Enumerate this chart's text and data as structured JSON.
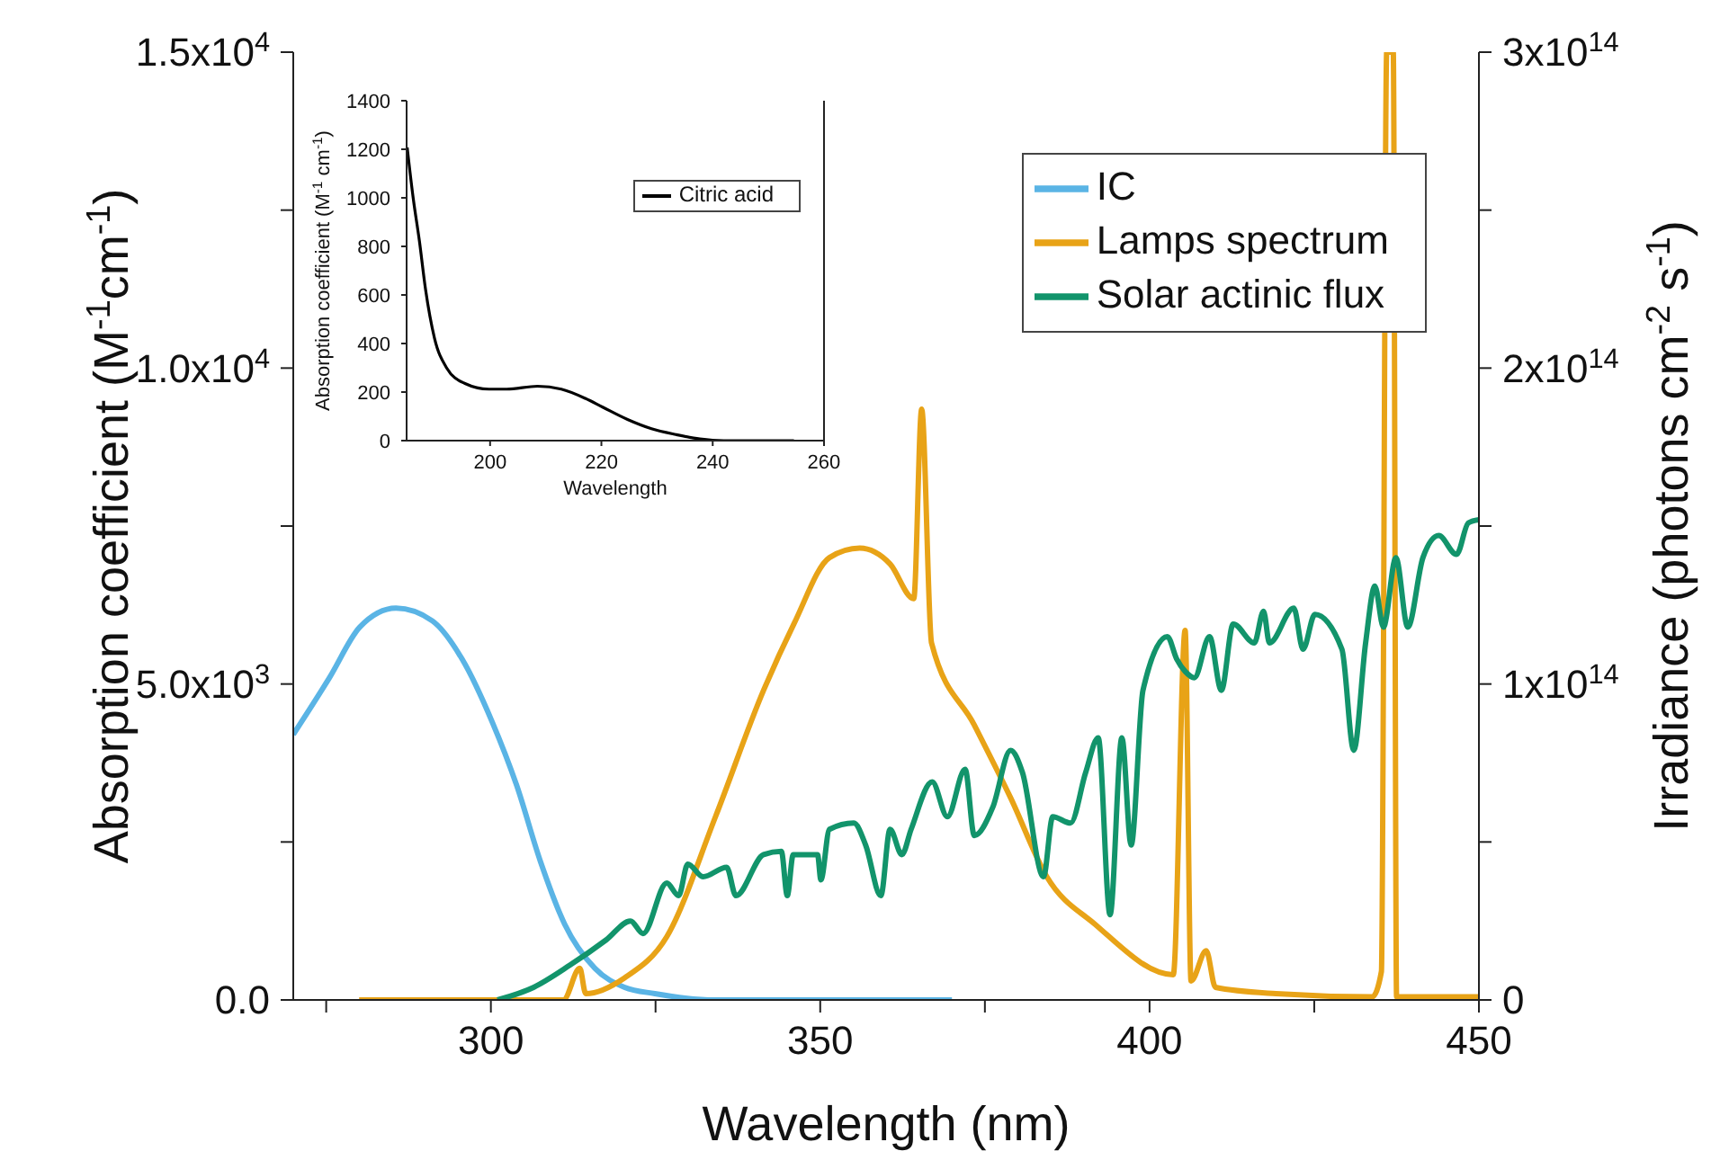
{
  "chart_data": [
    {
      "type": "line",
      "xlabel": "Wavelength (nm)",
      "ylabel": "Absorption coefficient (M$^{-1}$cm$^{-1}$)",
      "y2label": "Irradiance (photons cm$^{-2}$ s$^{-1}$)",
      "xlim": [
        270,
        450
      ],
      "xticks": [
        {
          "value": 275,
          "label": null
        },
        300,
        {
          "value": 325,
          "label": null
        },
        350,
        {
          "value": 375,
          "label": null
        },
        400,
        {
          "value": 425,
          "label": null
        },
        450
      ],
      "ylim": [
        0,
        15000
      ],
      "yticks": [
        {
          "value": 0,
          "label": "0.0"
        },
        {
          "value": 2500,
          "label": null
        },
        {
          "value": 5000,
          "label": "5.0x10$^{3}$"
        },
        {
          "value": 7500,
          "label": null
        },
        {
          "value": 10000,
          "label": "1.0x10$^{4}$"
        },
        {
          "value": 12500,
          "label": null
        },
        {
          "value": 15000,
          "label": "1.5x10$^{4}$"
        }
      ],
      "y2lim": [
        0,
        300000000000000.0
      ],
      "y2ticks": [
        0,
        {
          "value": 50000000000000.0,
          "label": null
        },
        {
          "value": 100000000000000.0,
          "label": "1x10$^{14}$"
        },
        {
          "value": 150000000000000.0,
          "label": null
        },
        {
          "value": 200000000000000.0,
          "label": "2x10$^{14}$"
        },
        {
          "value": 250000000000000.0,
          "label": null
        },
        {
          "value": 300000000000000.0,
          "label": "3x10$^{14}$"
        }
      ],
      "legend": "top right",
      "grid": false,
      "series": [
        {
          "name": "IC",
          "color": "#5ab4e5",
          "x": [
            270,
            275.5,
            280.1,
            285.6,
            291.1,
            295.6,
            300.2,
            303.9,
            307.5,
            311.2,
            315.8,
            320.3,
            324.9,
            334,
            345,
            360,
            370
          ],
          "values": [
            4200,
            5100,
            5900,
            6200,
            6000,
            5400,
            4400,
            3400,
            2200,
            1200,
            500,
            200,
            100,
            0,
            0,
            0,
            0
          ]
        },
        {
          "name": "Lamps spectrum",
          "color": "#e8a317",
          "axis": "y2",
          "x": [
            280,
            311,
            313.5,
            314.4,
            320.3,
            326.7,
            334.1,
            341.4,
            346,
            351.4,
            356,
            360.6,
            364.2,
            365.4,
            366.9,
            373.4,
            378.9,
            384.4,
            391.7,
            403.6,
            405.4,
            406.3,
            408.6,
            410,
            419.2,
            433.8,
            435.2,
            436,
            437,
            437.5,
            450
          ],
          "values": [
            0,
            0,
            10000000000000.0,
            2000000000000.0,
            7000000000000.0,
            20000000000000.0,
            58000000000000.0,
            98000000000000.0,
            119000000000000.0,
            140000000000000.0,
            143000000000000.0,
            138000000000000.0,
            127000000000000.0,
            187000000000000.0,
            113000000000000.0,
            87000000000000.0,
            64000000000000.0,
            39000000000000.0,
            24000000000000.0,
            8000000000000.0,
            117000000000000.0,
            6000000000000.0,
            15600000000000.0,
            4000000000000.0,
            2000000000000.0,
            1000000000000.0,
            9000000000000.0,
            300000000000000.0,
            300000000000000.0,
            1000000000000.0,
            1000000000000.0
          ]
        },
        {
          "name": "Solar actinic flux",
          "color": "#12946b",
          "axis": "y2",
          "x": [
            301,
            306.5,
            312,
            317.5,
            321.2,
            323.1,
            326.7,
            328.5,
            329.9,
            332.2,
            335.8,
            337.2,
            341.4,
            344.1,
            345,
            345.9,
            349.6,
            350.1,
            351.4,
            355.1,
            356.9,
            359.2,
            360.6,
            362.4,
            363.8,
            367,
            369.3,
            372,
            373.4,
            376.2,
            378.9,
            380.7,
            383.9,
            385.3,
            388,
            390.3,
            392.2,
            394,
            395.8,
            397.2,
            399,
            402.7,
            404.1,
            405.4,
            406.8,
            409.1,
            410.9,
            412.7,
            415.9,
            417.3,
            418.2,
            421.9,
            423.3,
            425.1,
            429.2,
            431,
            432.8,
            434.2,
            435.5,
            437.4,
            439.2,
            441.5,
            443.9,
            446.6,
            448.4,
            450
          ],
          "values": [
            0,
            4000000000000.0,
            11000000000000.0,
            19000000000000.0,
            25000000000000.0,
            21000000000000.0,
            37000000000000.0,
            33000000000000.0,
            43000000000000.0,
            39000000000000.0,
            42000000000000.0,
            33000000000000.0,
            46000000000000.0,
            47000000000000.0,
            33000000000000.0,
            46000000000000.0,
            46000000000000.0,
            38000000000000.0,
            54000000000000.0,
            56000000000000.0,
            49000000000000.0,
            33000000000000.0,
            54000000000000.0,
            46000000000000.0,
            54000000000000.0,
            69000000000000.0,
            58000000000000.0,
            73000000000000.0,
            52000000000000.0,
            61000000000000.0,
            79000000000000.0,
            72000000000000.0,
            39000000000000.0,
            58000000000000.0,
            56000000000000.0,
            72000000000000.0,
            83000000000000.0,
            27000000000000.0,
            83000000000000.0,
            49000000000000.0,
            98000000000000.0,
            115000000000000.0,
            108000000000000.0,
            104000000000000.0,
            102000000000000.0,
            115000000000000.0,
            98000000000000.0,
            119000000000000.0,
            113000000000000.0,
            123000000000000.0,
            113000000000000.0,
            124000000000000.0,
            111000000000000.0,
            122000000000000.0,
            111000000000000.0,
            79000000000000.0,
            113000000000000.0,
            131000000000000.0,
            118000000000000.0,
            140000000000000.0,
            118000000000000.0,
            140000000000000.0,
            147000000000000.0,
            141000000000000.0,
            151000000000000.0,
            152000000000000.0
          ]
        }
      ]
    },
    {
      "type": "line",
      "xlabel": "Wavelength",
      "ylabel": "Absorption coefficient (M$^{-1}$ cm$^{-1}$)",
      "xlim": [
        185,
        260
      ],
      "xticks": [
        200,
        220,
        240,
        260
      ],
      "ylim": [
        0,
        1400
      ],
      "yticks": [
        0,
        200,
        400,
        600,
        800,
        1000,
        1200,
        1400
      ],
      "legend": "top right",
      "grid": false,
      "series": [
        {
          "name": "Citric acid",
          "color": "#000000",
          "x": [
            185.1,
            186.2,
            187.3,
            188.4,
            190,
            192.2,
            195.4,
            199.8,
            203,
            208.5,
            212.8,
            217.1,
            220.3,
            224.7,
            229,
            233.4,
            237.7,
            242,
            254.6
          ],
          "values": [
            1208,
            996,
            822,
            623,
            423,
            299,
            236,
            212,
            212,
            224,
            212,
            174,
            137,
            87,
            49,
            25,
            7,
            0,
            0
          ]
        }
      ]
    }
  ]
}
